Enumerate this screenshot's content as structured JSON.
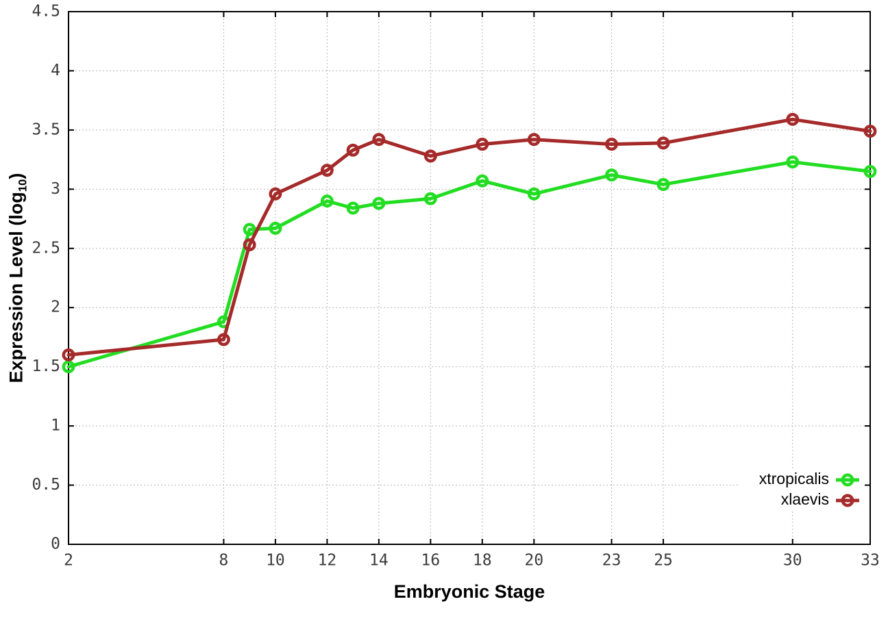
{
  "figure": {
    "xlabel": "Embryonic Stage",
    "ylabel_prefix": "Expression Level (log",
    "ylabel_sub": "10",
    "ylabel_suffix": ")"
  },
  "chart_data": {
    "type": "line",
    "title": "",
    "xlabel": "Embryonic Stage",
    "ylabel": "Expression Level (log10)",
    "x": [
      2,
      8,
      9,
      10,
      12,
      13,
      14,
      16,
      18,
      20,
      23,
      25,
      30,
      33
    ],
    "x_tick_labels": [
      2,
      8,
      10,
      12,
      14,
      16,
      18,
      20,
      23,
      25,
      30,
      33
    ],
    "xlim": [
      2,
      33
    ],
    "ylim": [
      0,
      4.5
    ],
    "ytick_step": 0.5,
    "grid": true,
    "grid_style": "dotted",
    "legend_position": "inside-bottom-right",
    "marker": "open-circle",
    "series": [
      {
        "name": "xtropicalis",
        "color": "#22dd22",
        "values": [
          1.5,
          1.88,
          2.66,
          2.67,
          2.9,
          2.84,
          2.88,
          2.92,
          3.07,
          2.96,
          3.12,
          3.04,
          3.23,
          3.15
        ]
      },
      {
        "name": "xlaevis",
        "color": "#a52a2a",
        "values": [
          1.6,
          1.73,
          2.53,
          2.96,
          3.16,
          3.33,
          3.42,
          3.28,
          3.38,
          3.42,
          3.38,
          3.39,
          3.59,
          3.49
        ]
      }
    ],
    "colors": {
      "grid": "#b5b5b5",
      "axis": "#000000",
      "tick_text": "#3a3a3a",
      "background": "#ffffff"
    }
  }
}
